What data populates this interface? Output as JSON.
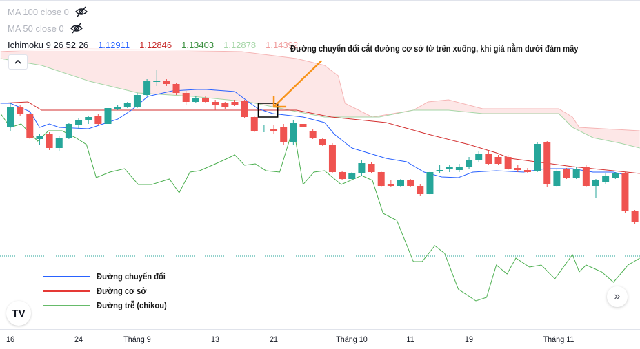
{
  "legend": {
    "ma100": "MA 100 close 0",
    "ma50": "MA 50 close 0",
    "ichimoku": {
      "label": "Ichimoku 9 26 52 26",
      "values": [
        "1.12911",
        "1.12846",
        "1.13403",
        "1.12878",
        "1.14392"
      ],
      "colors": [
        "#2962ff",
        "#c62828",
        "#388e3c",
        "#a5d6a7",
        "#ef9a9a"
      ]
    },
    "collapse_icon": "chevron-up-icon",
    "hidden_icon": "eye-off-icon"
  },
  "annotation": "Đường chuyển đổi cắt đường cơ sở từ trên xuống, khi giá nằm dưới đám mây",
  "line_legend": [
    {
      "label": "Đường chuyển đổi",
      "color": "#2962ff"
    },
    {
      "label": "Đường cơ sở",
      "color": "#e53935"
    },
    {
      "label": "Đường trễ (chikou)",
      "color": "#66bb6a"
    }
  ],
  "logo": "TV",
  "scroll_icon": "»",
  "colors": {
    "up": "#26a69a",
    "down": "#ef5350",
    "cloud": "#fde4e4",
    "arrow": "#f7931a",
    "price_line": "#26a69a"
  },
  "chart_data": {
    "type": "candlestick",
    "x_ticks": [
      {
        "bar": 0,
        "label": "16"
      },
      {
        "bar": 7,
        "label": "24"
      },
      {
        "bar": 13,
        "label": "Tháng 9"
      },
      {
        "bar": 21,
        "label": "13"
      },
      {
        "bar": 27,
        "label": "21"
      },
      {
        "bar": 35,
        "label": "Tháng 10"
      },
      {
        "bar": 41,
        "label": "11"
      },
      {
        "bar": 47,
        "label": "19"
      },
      {
        "bar": 56.2,
        "label": "Tháng 11"
      }
    ],
    "ohlc": [
      [
        1.1415,
        1.145,
        1.141,
        1.1445
      ],
      [
        1.1445,
        1.1448,
        1.1432,
        1.1435
      ],
      [
        1.1435,
        1.144,
        1.1398,
        1.14
      ],
      [
        1.1398,
        1.1405,
        1.139,
        1.1402
      ],
      [
        1.1405,
        1.1408,
        1.1382,
        1.1385
      ],
      [
        1.1385,
        1.1402,
        1.138,
        1.14
      ],
      [
        1.14,
        1.1422,
        1.1398,
        1.142
      ],
      [
        1.1418,
        1.1428,
        1.1412,
        1.1425
      ],
      [
        1.1425,
        1.1432,
        1.142,
        1.143
      ],
      [
        1.1432,
        1.1435,
        1.1418,
        1.142
      ],
      [
        1.142,
        1.1446,
        1.1418,
        1.1443
      ],
      [
        1.1442,
        1.1448,
        1.144,
        1.1445
      ],
      [
        1.1445,
        1.1452,
        1.1443,
        1.145
      ],
      [
        1.1445,
        1.1465,
        1.1443,
        1.1462
      ],
      [
        1.1462,
        1.1485,
        1.146,
        1.1482
      ],
      [
        1.1481,
        1.1498,
        1.1475,
        1.1483
      ],
      [
        1.1482,
        1.1485,
        1.1475,
        1.1478
      ],
      [
        1.1478,
        1.148,
        1.1462,
        1.1465
      ],
      [
        1.1465,
        1.1468,
        1.1448,
        1.1452
      ],
      [
        1.1452,
        1.146,
        1.145,
        1.1457
      ],
      [
        1.1457,
        1.146,
        1.145,
        1.1452
      ],
      [
        1.1452,
        1.1455,
        1.144,
        1.1448
      ],
      [
        1.145,
        1.1452,
        1.1442,
        1.1445
      ],
      [
        1.1452,
        1.1455,
        1.1446,
        1.1448
      ],
      [
        1.1453,
        1.1455,
        1.1428,
        1.143
      ],
      [
        1.143,
        1.1432,
        1.1408,
        1.141
      ],
      [
        1.1412,
        1.1418,
        1.1408,
        1.1413
      ],
      [
        1.1413,
        1.1418,
        1.1406,
        1.141
      ],
      [
        1.1415,
        1.142,
        1.139,
        1.1393
      ],
      [
        1.1393,
        1.1425,
        1.139,
        1.1422
      ],
      [
        1.142,
        1.1425,
        1.1412,
        1.1415
      ],
      [
        1.141,
        1.1412,
        1.1398,
        1.14
      ],
      [
        1.1398,
        1.14,
        1.1388,
        1.139
      ],
      [
        1.139,
        1.1392,
        1.1348,
        1.135
      ],
      [
        1.135,
        1.1352,
        1.1338,
        1.134
      ],
      [
        1.134,
        1.135,
        1.1338,
        1.1348
      ],
      [
        1.1348,
        1.1368,
        1.1345,
        1.1363
      ],
      [
        1.1362,
        1.1365,
        1.1348,
        1.135
      ],
      [
        1.135,
        1.1352,
        1.1328,
        1.133
      ],
      [
        1.1333,
        1.1338,
        1.1328,
        1.133
      ],
      [
        1.133,
        1.134,
        1.1328,
        1.1338
      ],
      [
        1.1338,
        1.134,
        1.1328,
        1.133
      ],
      [
        1.133,
        1.1332,
        1.1315,
        1.1318
      ],
      [
        1.1318,
        1.1352,
        1.1316,
        1.135
      ],
      [
        1.1351,
        1.136,
        1.1348,
        1.1353
      ],
      [
        1.1354,
        1.136,
        1.135,
        1.1357
      ],
      [
        1.1353,
        1.1362,
        1.135,
        1.1358
      ],
      [
        1.1358,
        1.1372,
        1.1355,
        1.1368
      ],
      [
        1.1368,
        1.138,
        1.1365,
        1.1376
      ],
      [
        1.1376,
        1.138,
        1.136,
        1.1362
      ],
      [
        1.1372,
        1.1375,
        1.136,
        1.1362
      ],
      [
        1.1372,
        1.1375,
        1.1353,
        1.1355
      ],
      [
        1.1356,
        1.136,
        1.135,
        1.1353
      ],
      [
        1.1353,
        1.1356,
        1.1348,
        1.135
      ],
      [
        1.1352,
        1.1393,
        1.135,
        1.1391
      ],
      [
        1.1393,
        1.1395,
        1.1328,
        1.1332
      ],
      [
        1.133,
        1.1355,
        1.1328,
        1.1352
      ],
      [
        1.1354,
        1.1356,
        1.134,
        1.1342
      ],
      [
        1.1342,
        1.1358,
        1.134,
        1.1355
      ],
      [
        1.1357,
        1.136,
        1.1328,
        1.133
      ],
      [
        1.133,
        1.134,
        1.1312,
        1.1338
      ],
      [
        1.1335,
        1.1348,
        1.1333,
        1.1345
      ],
      [
        1.1342,
        1.135,
        1.134,
        1.1348
      ],
      [
        1.1348,
        1.135,
        1.129,
        1.1293
      ],
      [
        1.1293,
        1.1295,
        1.1275,
        1.1278
      ]
    ],
    "conversion_line": [
      [
        -1,
        1.145
      ],
      [
        0,
        1.145
      ],
      [
        2,
        1.1438
      ],
      [
        3,
        1.1415
      ],
      [
        4,
        1.142
      ],
      [
        5,
        1.1415
      ],
      [
        8,
        1.1413
      ],
      [
        11,
        1.1427
      ],
      [
        12.4,
        1.144
      ],
      [
        14.1,
        1.146
      ],
      [
        16.6,
        1.1468
      ],
      [
        19.1,
        1.147
      ],
      [
        20.1,
        1.147
      ],
      [
        23,
        1.1467
      ],
      [
        24.4,
        1.1452
      ],
      [
        25.4,
        1.1442
      ],
      [
        26.9,
        1.1435
      ],
      [
        30,
        1.143
      ],
      [
        32.2,
        1.1422
      ],
      [
        33.2,
        1.1405
      ],
      [
        35,
        1.1385
      ],
      [
        38.5,
        1.137
      ],
      [
        40.6,
        1.1365
      ],
      [
        42.4,
        1.135
      ],
      [
        44.2,
        1.1343
      ],
      [
        45.9,
        1.1342
      ],
      [
        47.4,
        1.135
      ],
      [
        49.8,
        1.1352
      ],
      [
        52.6,
        1.135
      ],
      [
        54.8,
        1.1355
      ],
      [
        57.6,
        1.1355
      ],
      [
        59.7,
        1.135
      ],
      [
        61.8,
        1.135
      ],
      [
        63.3,
        1.1345
      ]
    ],
    "base_line": [
      [
        -1,
        1.145
      ],
      [
        1.8,
        1.1452
      ],
      [
        3.2,
        1.144
      ],
      [
        13.1,
        1.144
      ],
      [
        23.7,
        1.144
      ],
      [
        29.3,
        1.144
      ],
      [
        32.9,
        1.143
      ],
      [
        38.5,
        1.1422
      ],
      [
        42.8,
        1.1405
      ],
      [
        47,
        1.139
      ],
      [
        49.8,
        1.1378
      ],
      [
        51.2,
        1.137
      ],
      [
        57.6,
        1.1358
      ],
      [
        61.8,
        1.1352
      ],
      [
        64.5,
        1.1348
      ]
    ],
    "lagging_span": [
      [
        -1,
        1.1435
      ],
      [
        0,
        1.1415
      ],
      [
        1.1,
        1.142
      ],
      [
        2.8,
        1.1395
      ],
      [
        3.9,
        1.141
      ],
      [
        5.3,
        1.141
      ],
      [
        6.7,
        1.14
      ],
      [
        7.8,
        1.139
      ],
      [
        8.8,
        1.1342
      ],
      [
        10.2,
        1.135
      ],
      [
        11.7,
        1.1355
      ],
      [
        13.1,
        1.1332
      ],
      [
        14.5,
        1.1332
      ],
      [
        16.3,
        1.134
      ],
      [
        17.3,
        1.132
      ],
      [
        18.4,
        1.135
      ],
      [
        19.4,
        1.1352
      ],
      [
        21.5,
        1.1365
      ],
      [
        23,
        1.1375
      ],
      [
        24,
        1.136
      ],
      [
        25.1,
        1.1362
      ],
      [
        26.2,
        1.1352
      ],
      [
        27.6,
        1.135
      ],
      [
        29,
        1.1415
      ],
      [
        30,
        1.1332
      ],
      [
        31.1,
        1.135
      ],
      [
        32.2,
        1.1352
      ],
      [
        33.9,
        1.1332
      ],
      [
        36,
        1.1345
      ],
      [
        37.1,
        1.1338
      ],
      [
        38.2,
        1.129
      ],
      [
        39.6,
        1.128
      ],
      [
        41.3,
        1.122
      ],
      [
        42.2,
        1.122
      ],
      [
        43.5,
        1.1243
      ],
      [
        44.5,
        1.1232
      ],
      [
        45.9,
        1.118
      ],
      [
        47.7,
        1.1163
      ],
      [
        48.8,
        1.1168
      ],
      [
        49.8,
        1.1215
      ],
      [
        50.9,
        1.1202
      ],
      [
        51.8,
        1.1225
      ],
      [
        53.2,
        1.1212
      ],
      [
        54.4,
        1.1215
      ],
      [
        55.8,
        1.1195
      ],
      [
        57.6,
        1.123
      ],
      [
        58.3,
        1.1205
      ],
      [
        59,
        1.1215
      ],
      [
        60.6,
        1.1205
      ],
      [
        61.8,
        1.119
      ],
      [
        63.3,
        1.1215
      ],
      [
        64.5,
        1.1225
      ]
    ],
    "cloud_upper": [
      [
        -1,
        1.1525
      ],
      [
        6,
        1.153
      ],
      [
        23.7,
        1.1525
      ],
      [
        29.3,
        1.1515
      ],
      [
        32.2,
        1.1505
      ],
      [
        33.6,
        1.149
      ],
      [
        34.3,
        1.145
      ],
      [
        37.1,
        1.143
      ],
      [
        41.3,
        1.144
      ],
      [
        42.8,
        1.1452
      ],
      [
        44.9,
        1.1455
      ],
      [
        48.4,
        1.1442
      ],
      [
        56.2,
        1.1442
      ],
      [
        57.6,
        1.143
      ],
      [
        58.3,
        1.1415
      ],
      [
        64.5,
        1.141
      ]
    ],
    "cloud_lower": [
      [
        -1,
        1.1515
      ],
      [
        3.2,
        1.1505
      ],
      [
        8.1,
        1.1482
      ],
      [
        13.1,
        1.1465
      ],
      [
        18.7,
        1.146
      ],
      [
        24.4,
        1.1452
      ],
      [
        28.6,
        1.144
      ],
      [
        32.2,
        1.143
      ],
      [
        37.8,
        1.143
      ],
      [
        41.3,
        1.144
      ],
      [
        44.9,
        1.144
      ],
      [
        48.4,
        1.1435
      ],
      [
        56.2,
        1.1435
      ],
      [
        57.6,
        1.1415
      ],
      [
        59.7,
        1.14
      ],
      [
        62.5,
        1.1392
      ],
      [
        64.5,
        1.1385
      ]
    ],
    "price_line": 1.1228,
    "highlight_bars": [
      25.4,
      27.4
    ],
    "highlight_range": [
      1.143,
      1.145
    ],
    "arrow": {
      "from": [
        31.9,
        1.1512
      ],
      "to": [
        27,
        1.1445
      ]
    }
  }
}
